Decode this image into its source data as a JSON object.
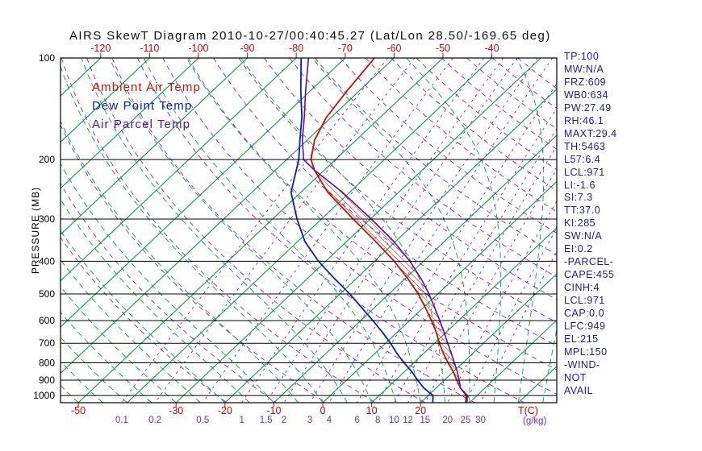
{
  "window": {
    "title": "AIRS SkewT Diagram 2010-10-27/00:40:45.27 (Lat/Lon 28.50/-169.65 deg)"
  },
  "legend": {
    "items": [
      {
        "label": "Ambient Air Temp",
        "color": "#cc1100"
      },
      {
        "label": "Dew Point Temp",
        "color": "#0022bb"
      },
      {
        "label": "Air Parcel Temp",
        "color": "#5e0f9e"
      }
    ]
  },
  "axes": {
    "pressure_label": "PRESSURE (MB)",
    "temp_unit": "T(C)",
    "mixing_unit": "(g/kg)"
  },
  "colors": {
    "isotherm": "#00a33c",
    "moist_adiabat": "#00a33c",
    "dry_adiabat": "#8822cc",
    "mixing_ratio": "#8822cc",
    "temp_axis": "#d40000",
    "pressure_axis": "#000000",
    "frame": "#000000",
    "hatch": "#cc0000",
    "stats_text": "#1b1b99"
  },
  "stats": {
    "items": [
      "TP:100",
      "MW:N/A",
      "FRZ:609",
      "WB0:634",
      "PW:27.49",
      "RH:46.1",
      "MAXT:29.4",
      "TH:5463",
      "L57:6.4",
      "LCL:971",
      "LI:-1.6",
      "SI:7.3",
      "TT:37.0",
      "KI:285",
      "SW:N/A",
      "EI:0.2",
      "-PARCEL-",
      "CAPE:455",
      "CINH:4",
      "LCL:971",
      "CAP:0.0",
      "LFC:949",
      "EL:215",
      "MPL:150",
      "-WIND-",
      "NOT",
      "AVAIL"
    ]
  },
  "chart_data": {
    "type": "line",
    "variant": "skew-t-log-p",
    "title": "AIRS SkewT Diagram",
    "datetime": "2010-10-27/00:40:45.27",
    "lat_lon": "28.50/-169.65",
    "y_axis": {
      "label": "PRESSURE (MB)",
      "scale": "log",
      "range": [
        100,
        1050
      ],
      "ticks": [
        100,
        200,
        300,
        400,
        500,
        600,
        700,
        800,
        900,
        1000
      ]
    },
    "x_axis": {
      "label": "T(C)",
      "top_ticks": [
        -120,
        -110,
        -100,
        -90,
        -80,
        -70,
        -60,
        -50,
        -40
      ],
      "bottom_ticks": [
        -50,
        -30,
        -20,
        -10,
        0,
        10,
        20
      ]
    },
    "secondary_x_axis": {
      "label": "(g/kg)",
      "ticks": [
        0.1,
        0.2,
        0.5,
        1,
        1.5,
        2,
        3,
        4,
        6,
        8,
        10,
        12,
        15,
        20,
        25,
        30
      ]
    },
    "grid": {
      "isotherm_step_c": 10,
      "dry_adiabat_step_k": 10,
      "moist_adiabat_step_c": 5
    },
    "series": [
      {
        "name": "Ambient Air Temp",
        "color": "#cc1100",
        "width": 1.8,
        "points": [
          [
            1050,
            29.5
          ],
          [
            1000,
            28
          ],
          [
            950,
            25
          ],
          [
            900,
            22.5
          ],
          [
            850,
            20
          ],
          [
            800,
            17
          ],
          [
            750,
            14
          ],
          [
            700,
            11
          ],
          [
            650,
            8
          ],
          [
            600,
            4.5
          ],
          [
            550,
            0.5
          ],
          [
            500,
            -4
          ],
          [
            450,
            -9.5
          ],
          [
            400,
            -16
          ],
          [
            350,
            -24
          ],
          [
            300,
            -33.5
          ],
          [
            250,
            -44.5
          ],
          [
            215,
            -52
          ],
          [
            200,
            -55
          ],
          [
            175,
            -58.5
          ],
          [
            150,
            -61
          ],
          [
            125,
            -62.5
          ],
          [
            100,
            -64
          ]
        ]
      },
      {
        "name": "Dew Point Temp",
        "color": "#0022bb",
        "width": 1.8,
        "points": [
          [
            1050,
            22.5
          ],
          [
            1000,
            21
          ],
          [
            950,
            17.5
          ],
          [
            900,
            14.5
          ],
          [
            850,
            11.5
          ],
          [
            800,
            8
          ],
          [
            750,
            4.5
          ],
          [
            700,
            1
          ],
          [
            650,
            -3
          ],
          [
            600,
            -7.5
          ],
          [
            550,
            -12.5
          ],
          [
            500,
            -18
          ],
          [
            450,
            -24.5
          ],
          [
            400,
            -31.5
          ],
          [
            350,
            -38.5
          ],
          [
            300,
            -45
          ],
          [
            250,
            -52
          ],
          [
            200,
            -57.5
          ],
          [
            175,
            -61.5
          ],
          [
            150,
            -66
          ],
          [
            125,
            -72
          ],
          [
            100,
            -79
          ]
        ]
      },
      {
        "name": "Air Parcel Temp",
        "color": "#5e0f9e",
        "width": 1.6,
        "points": [
          [
            1050,
            29.2
          ],
          [
            1000,
            27.8
          ],
          [
            971,
            26.2
          ],
          [
            950,
            25.0
          ],
          [
            900,
            23.0
          ],
          [
            850,
            20.8
          ],
          [
            800,
            18.3
          ],
          [
            750,
            15.6
          ],
          [
            700,
            12.7
          ],
          [
            650,
            9.6
          ],
          [
            600,
            6.2
          ],
          [
            550,
            2.4
          ],
          [
            500,
            -1.8
          ],
          [
            450,
            -6.8
          ],
          [
            400,
            -12.8
          ],
          [
            350,
            -20.3
          ],
          [
            300,
            -29.8
          ],
          [
            250,
            -41.5
          ],
          [
            215,
            -52
          ],
          [
            200,
            -56.5
          ],
          [
            175,
            -61
          ],
          [
            150,
            -65.5
          ],
          [
            125,
            -71
          ],
          [
            100,
            -77.5
          ]
        ]
      }
    ],
    "cape_hatch_p_range": [
      949,
      215
    ]
  }
}
